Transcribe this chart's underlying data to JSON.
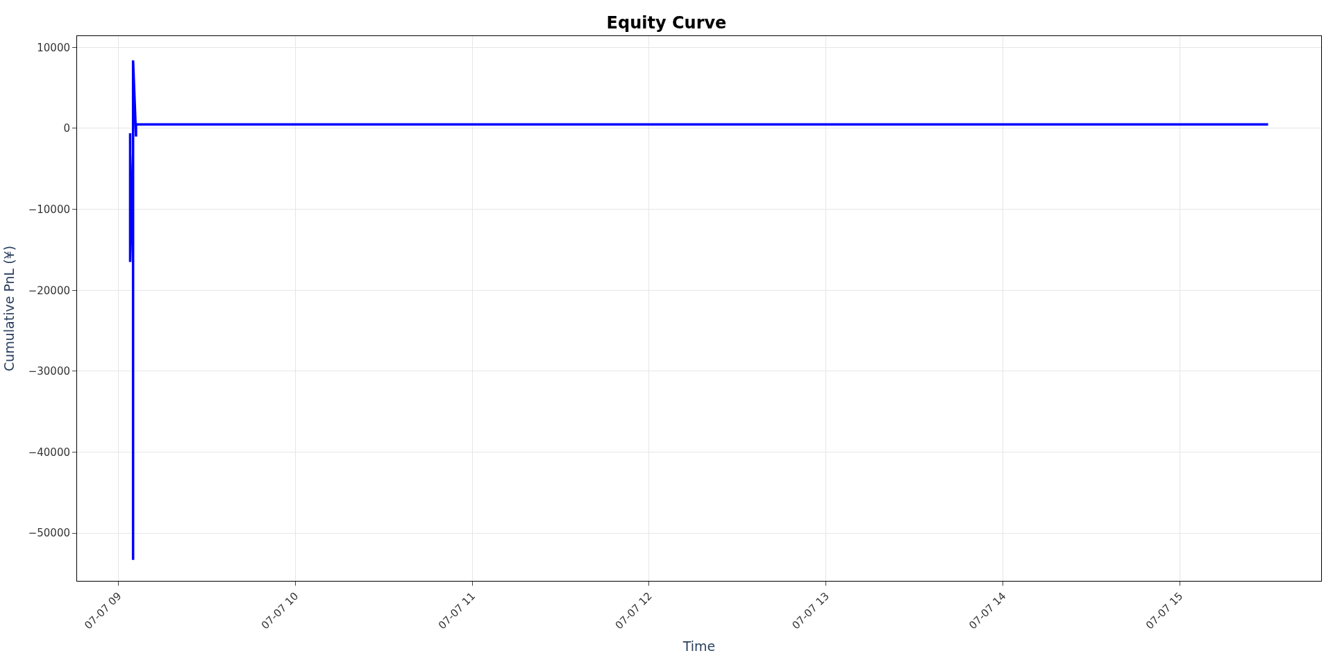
{
  "chart_data": {
    "type": "line",
    "title": "Equity Curve",
    "xlabel": "Time",
    "ylabel": "Cumulative PnL (¥)",
    "x": [
      "--07-07T09:04",
      "--07-07T09:04",
      "--07-07T09:04",
      "--07-07T09:05",
      "--07-07T09:05",
      "--07-07T09:05",
      "--07-07T09:05",
      "--07-07T09:05",
      "--07-07T09:05",
      "--07-07T09:06",
      "--07-07T09:06",
      "--07-07T09:06",
      "--07-07T09:06",
      "--07-07T15:30"
    ],
    "series": [
      {
        "color": "#0000ff",
        "values": [
          -600,
          -15500,
          -16500,
          -3000,
          -14000,
          -20000,
          -53300,
          -8000,
          8400,
          -1000,
          200,
          500,
          500,
          500
        ]
      }
    ],
    "xlim": [
      "--07-07T08:46",
      "--07-07T15:48"
    ],
    "xticks": [
      {
        "value": "--07-07T09:00",
        "label": "07-07 09"
      },
      {
        "value": "--07-07T10:00",
        "label": "07-07 10"
      },
      {
        "value": "--07-07T11:00",
        "label": "07-07 11"
      },
      {
        "value": "--07-07T12:00",
        "label": "07-07 12"
      },
      {
        "value": "--07-07T13:00",
        "label": "07-07 13"
      },
      {
        "value": "--07-07T14:00",
        "label": "07-07 14"
      },
      {
        "value": "--07-07T15:00",
        "label": "07-07 15"
      }
    ],
    "ylim": [
      -55900,
      11400
    ],
    "yticks": [
      {
        "value": 10000,
        "label": "10000"
      },
      {
        "value": 0,
        "label": "0"
      },
      {
        "value": -10000,
        "label": "−10000"
      },
      {
        "value": -20000,
        "label": "−20000"
      },
      {
        "value": -30000,
        "label": "−30000"
      },
      {
        "value": -40000,
        "label": "−40000"
      },
      {
        "value": -50000,
        "label": "−50000"
      }
    ],
    "grid": true,
    "legend": false,
    "line_style": "solid",
    "marker": "none"
  }
}
